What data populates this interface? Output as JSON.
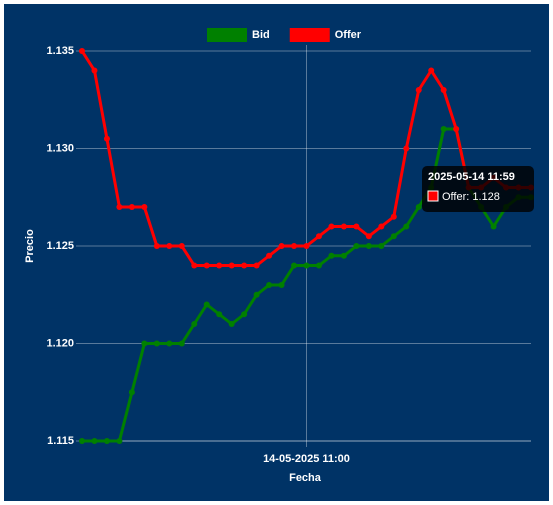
{
  "chart_data": {
    "type": "line",
    "x_label": "Fecha",
    "y_label": "Precio",
    "categories": [
      null,
      null,
      null,
      null,
      null,
      null,
      null,
      null,
      null,
      null,
      null,
      null,
      null,
      null,
      null,
      null,
      null,
      null,
      "14-05-2025 11:00",
      null,
      null,
      null,
      null,
      null,
      null,
      null,
      null,
      null,
      null,
      null,
      null,
      null,
      null,
      null,
      null,
      null,
      null
    ],
    "series": [
      {
        "name": "Bid",
        "color": "#008000",
        "values": [
          1.115,
          1.115,
          1.115,
          1.115,
          1.1175,
          1.12,
          1.12,
          1.12,
          1.12,
          1.121,
          1.122,
          1.1215,
          1.121,
          1.1215,
          1.1225,
          1.123,
          1.123,
          1.124,
          1.124,
          1.124,
          1.1245,
          1.1245,
          1.125,
          1.125,
          1.125,
          1.1255,
          1.126,
          1.127,
          1.128,
          1.131,
          1.131,
          1.128,
          1.127,
          1.126,
          1.127,
          1.1275,
          1.1275
        ]
      },
      {
        "name": "Offer",
        "color": "#ff0000",
        "values": [
          1.135,
          1.134,
          1.1305,
          1.127,
          1.127,
          1.127,
          1.125,
          1.125,
          1.125,
          1.124,
          1.124,
          1.124,
          1.124,
          1.124,
          1.124,
          1.1245,
          1.125,
          1.125,
          1.125,
          1.1255,
          1.126,
          1.126,
          1.126,
          1.1255,
          1.126,
          1.1265,
          1.13,
          1.133,
          1.134,
          1.133,
          1.131,
          1.128,
          1.128,
          1.1285,
          1.128,
          1.128,
          1.128
        ]
      }
    ],
    "ylim": [
      1.115,
      1.135
    ],
    "yticks": [
      1.115,
      {
        "value": 1.12,
        "label": "1.120"
      },
      1.125,
      {
        "value": 1.13,
        "label": "1.130"
      },
      1.135
    ],
    "grid": true,
    "legend": "top",
    "tooltip": {
      "title": "2025-05-14 11:59",
      "text": "Offer: 1.128",
      "series": 1,
      "index": 35
    }
  }
}
